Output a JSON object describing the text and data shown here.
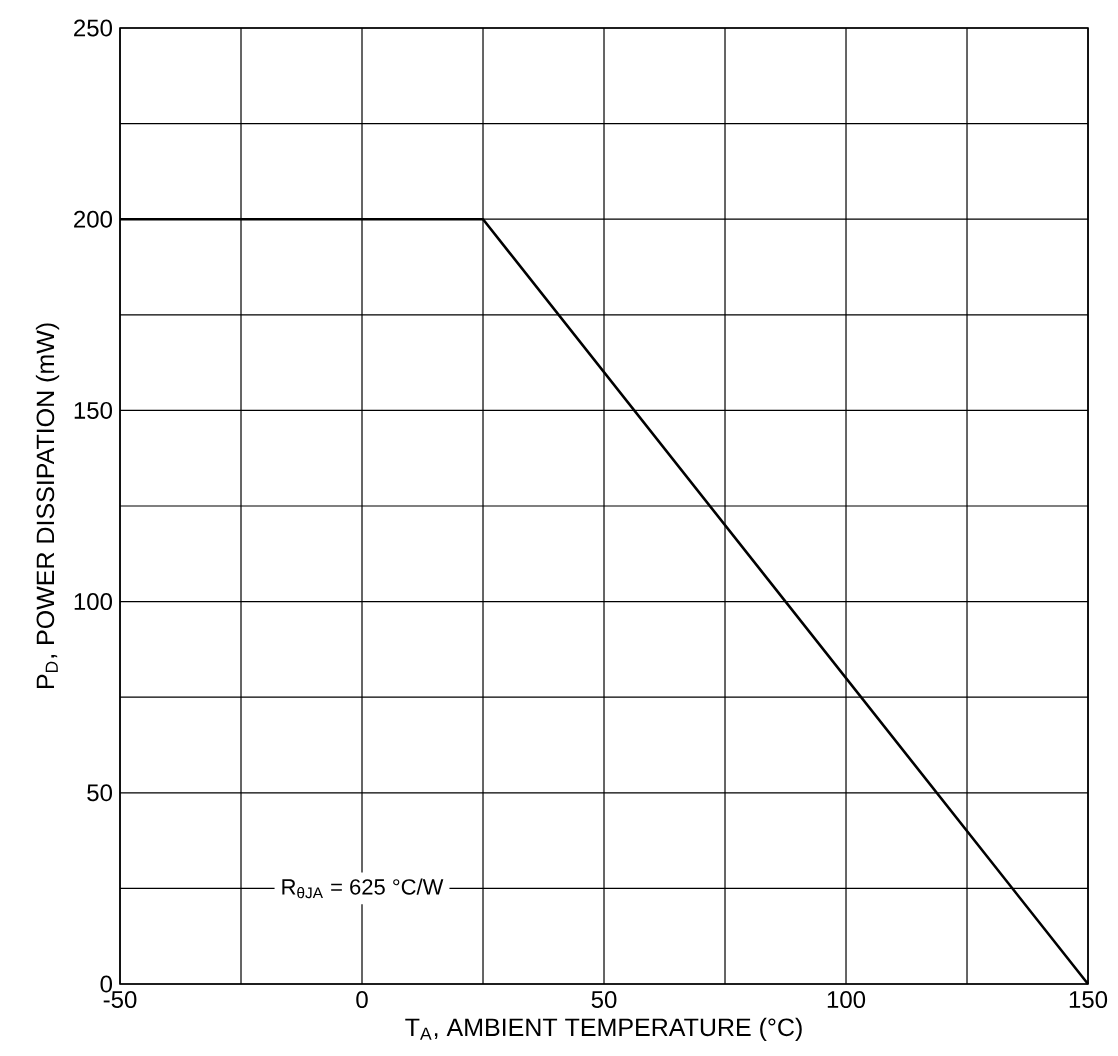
{
  "chart_data": {
    "type": "line",
    "xlabel": "T$_{A}$, AMBIENT TEMPERATURE (°C)",
    "ylabel": "P$_{D}$, POWER DISSIPATION (mW)",
    "x": [
      -50,
      25,
      150
    ],
    "series": [
      {
        "color": "#000000",
        "values": [
          200,
          200,
          0
        ]
      }
    ],
    "xlim": [
      -50,
      150
    ],
    "xticks": [
      -50,
      {
        "value": -25,
        "label": null
      },
      0,
      {
        "value": 25,
        "label": null
      },
      50,
      {
        "value": 75,
        "label": null
      },
      100,
      {
        "value": 125,
        "label": null
      },
      150
    ],
    "ylim": [
      0,
      250
    ],
    "yticks": [
      0,
      {
        "value": 25,
        "label": null
      },
      50,
      {
        "value": 75,
        "label": null
      },
      100,
      {
        "value": 125,
        "label": null
      },
      150,
      {
        "value": 175,
        "label": null
      },
      200,
      {
        "value": 225,
        "label": null
      },
      250
    ],
    "grid": true,
    "annotations": [
      "R$_{θJA}$ = 625 °C/W"
    ]
  }
}
